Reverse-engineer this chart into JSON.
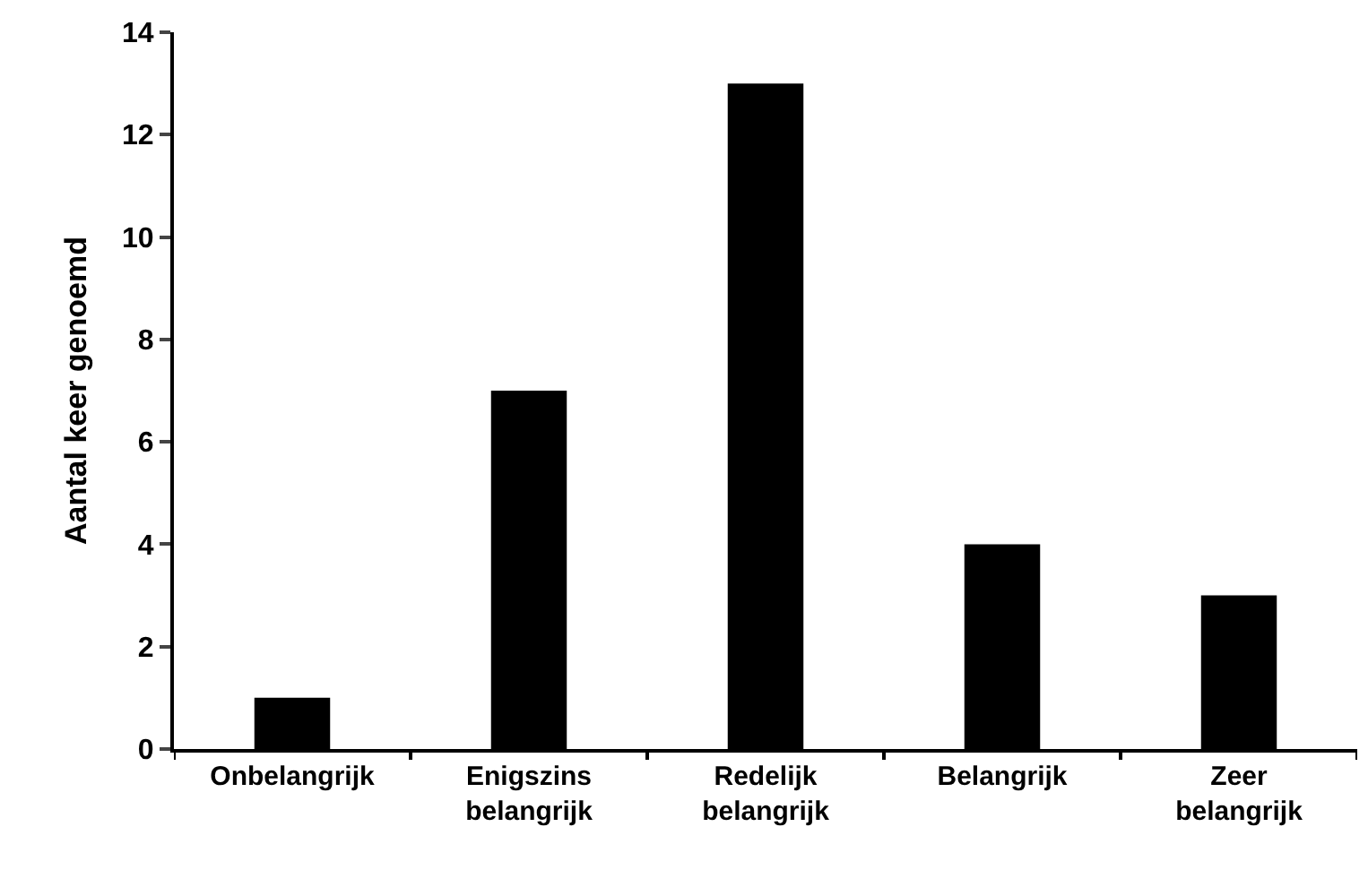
{
  "chart_data": {
    "type": "bar",
    "ylabel": "Aantal keer genoemd",
    "categories": [
      "Onbelangrijk",
      "Enigszins belangrijk",
      "Redelijk belangrijk",
      "Belangrijk",
      "Zeer belangrijk"
    ],
    "values": [
      1,
      7,
      13,
      4,
      3
    ],
    "color": "#000000",
    "ylim": [
      0,
      14
    ],
    "yticks": [
      0,
      2,
      4,
      6,
      8,
      10,
      12,
      14
    ]
  }
}
